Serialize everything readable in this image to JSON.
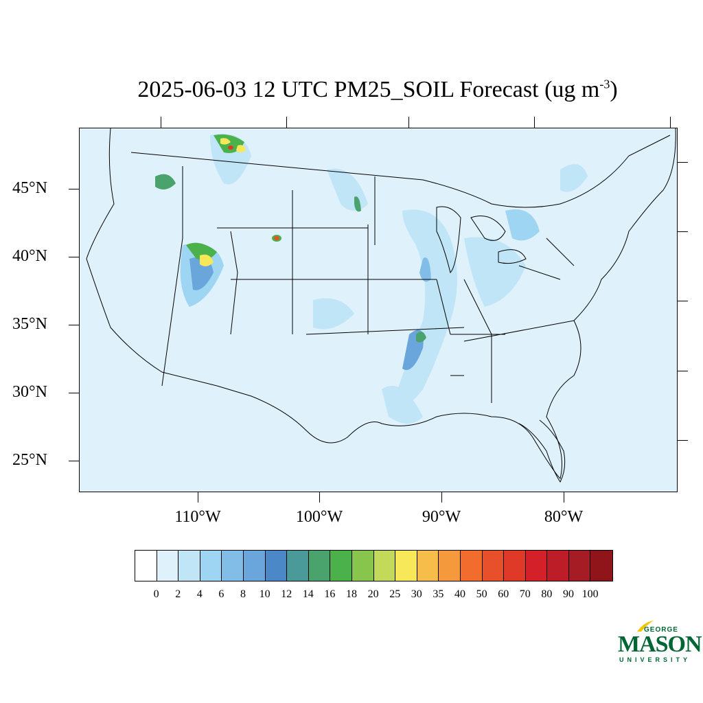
{
  "title": {
    "main": "2025-06-03 12 UTC PM25_SOIL Forecast (ug m",
    "exponent": "-3",
    "close": ")"
  },
  "axes": {
    "lat_labels": [
      "45°N",
      "40°N",
      "35°N",
      "30°N",
      "25°N"
    ],
    "lon_labels": [
      "110°W",
      "100°W",
      "90°W",
      "80°W"
    ]
  },
  "legend": {
    "colors": [
      "#ffffff",
      "#dff1fb",
      "#bfe5f7",
      "#9dd5f3",
      "#82bde8",
      "#6aa6dc",
      "#4a88c7",
      "#4a9a9a",
      "#4aa36d",
      "#4bb14a",
      "#88c54c",
      "#c3d95a",
      "#f7e85a",
      "#f7bd4a",
      "#f49a3d",
      "#f26d2d",
      "#e8502c",
      "#df3a27",
      "#d42129",
      "#bd1d27",
      "#a51c24",
      "#8f151b"
    ],
    "labels": [
      "0",
      "2",
      "4",
      "6",
      "8",
      "10",
      "12",
      "14",
      "16",
      "18",
      "20",
      "25",
      "30",
      "35",
      "40",
      "50",
      "60",
      "70",
      "80",
      "90",
      "100"
    ]
  },
  "logo": {
    "george": "GEORGE",
    "mason": "MASON",
    "university": "UNIVERSITY"
  },
  "colors": {
    "background": "#dff1fb",
    "logo_green": "#006633",
    "logo_gold": "#f2c500"
  }
}
